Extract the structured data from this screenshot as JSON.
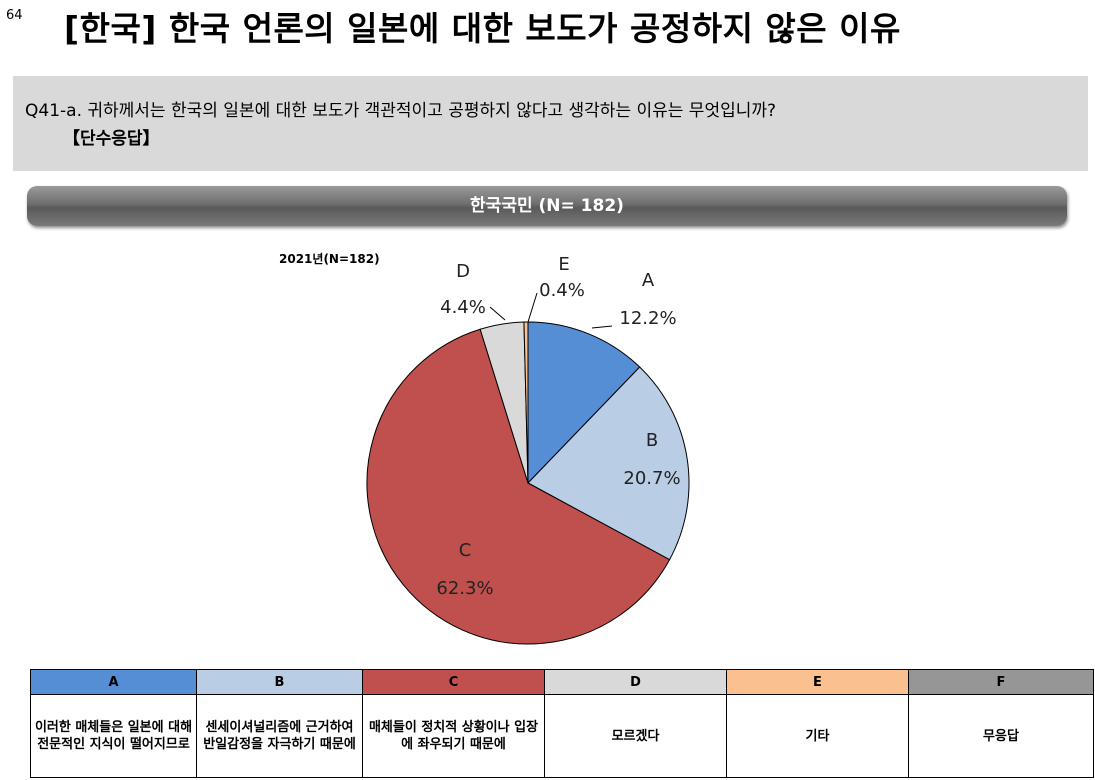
{
  "page": {
    "number": "64",
    "title": "[한국] 한국 언론의 일본에 대한 보도가 공정하지 않은 이유"
  },
  "question": {
    "text": "Q41-a. 귀하께서는 한국의 일본에 대한 보도가 객관적이고 공평하지 않다고 생각하는 이유는 무엇입니까?",
    "sub": "【단수응답】"
  },
  "group_bar": {
    "label": "한국국민 (N= 182)"
  },
  "chart_data": {
    "type": "pie",
    "subtitle": "2021년(N=182)",
    "categories": [
      "A",
      "B",
      "C",
      "D",
      "E"
    ],
    "values": [
      12.2,
      20.7,
      62.3,
      4.4,
      0.4
    ],
    "value_labels": [
      "12.2%",
      "20.7%",
      "62.3%",
      "4.4%",
      "0.4%"
    ],
    "colors": [
      "#558ed5",
      "#b9cde5",
      "#c0504d",
      "#d9d9d9",
      "#fac090"
    ],
    "start": "12 o'clock, clockwise"
  },
  "legend_table": {
    "columns": [
      {
        "key": "A",
        "label": "A",
        "desc": "이러한 매체들은 일본에 대해 전문적인 지식이 떨어지므로",
        "color": "#558ed5"
      },
      {
        "key": "B",
        "label": "B",
        "desc": "센세이셔널리즘에 근거하여 반일감정을 자극하기 때문에",
        "color": "#b9cde5"
      },
      {
        "key": "C",
        "label": "C",
        "desc": "매체들이 정치적 상황이나 입장에 좌우되기 때문에",
        "color": "#c0504d"
      },
      {
        "key": "D",
        "label": "D",
        "desc": "모르겠다",
        "color": "#d9d9d9"
      },
      {
        "key": "E",
        "label": "E",
        "desc": "기타",
        "color": "#fac090"
      },
      {
        "key": "F",
        "label": "F",
        "desc": "무응답",
        "color": "#969696"
      }
    ]
  }
}
